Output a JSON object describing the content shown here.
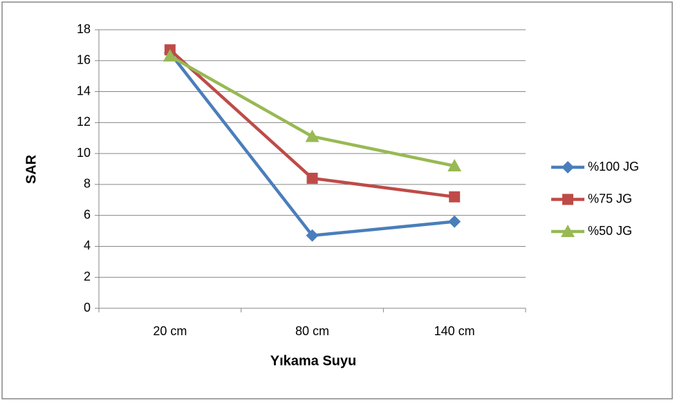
{
  "chart_data": {
    "type": "line",
    "categories": [
      "20 cm",
      "80 cm",
      "140 cm"
    ],
    "series": [
      {
        "name": "%100 JG",
        "color": "#4a7ebb",
        "marker": "diamond",
        "values": [
          16.5,
          4.7,
          5.6
        ]
      },
      {
        "name": "%75 JG",
        "color": "#be4b48",
        "marker": "square",
        "values": [
          16.7,
          8.4,
          7.2
        ]
      },
      {
        "name": "%50 JG",
        "color": "#98b954",
        "marker": "triangle",
        "values": [
          16.3,
          11.1,
          9.2
        ]
      }
    ],
    "xlabel": "Yıkama Suyu",
    "ylabel": "SAR",
    "ylim": [
      0,
      18
    ],
    "yticks": [
      0,
      2,
      4,
      6,
      8,
      10,
      12,
      14,
      16,
      18
    ],
    "grid": true,
    "legend": "right"
  }
}
